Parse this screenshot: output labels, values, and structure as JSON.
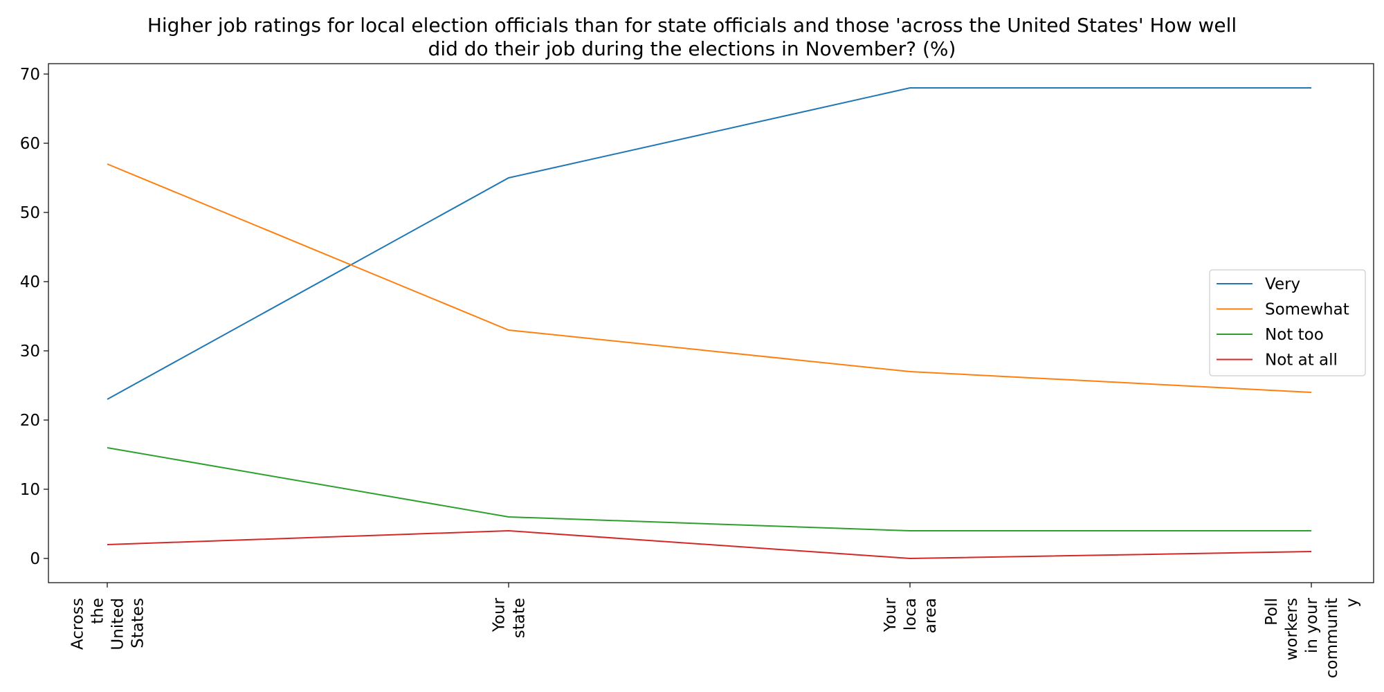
{
  "chart_data": {
    "type": "line",
    "title_lines": [
      "Higher job ratings for local election officials than for state officials and those 'across the United States' How well",
      "did do their job during the elections in November? (%)"
    ],
    "xlabel": "",
    "ylabel": "",
    "categories": [
      [
        "Across",
        "the",
        "United",
        "States"
      ],
      [
        "Your",
        "state"
      ],
      [
        "Your",
        "loca",
        "area"
      ],
      [
        "Poll",
        "workers",
        "in your",
        "communit",
        "y"
      ]
    ],
    "ylim": [
      -3.5,
      71.5
    ],
    "yticks": [
      0,
      10,
      20,
      30,
      40,
      50,
      60,
      70
    ],
    "grid": false,
    "legend_position": "center-right",
    "series": [
      {
        "name": "Very",
        "color": "#1f77b4",
        "values": [
          23,
          55,
          68,
          68
        ]
      },
      {
        "name": "Somewhat",
        "color": "#ff7f0e",
        "values": [
          57,
          33,
          27,
          24
        ]
      },
      {
        "name": "Not too",
        "color": "#2ca02c",
        "values": [
          16,
          6,
          4,
          4
        ]
      },
      {
        "name": "Not at all",
        "color": "#d62728",
        "values": [
          2,
          4,
          0,
          1
        ]
      }
    ]
  }
}
